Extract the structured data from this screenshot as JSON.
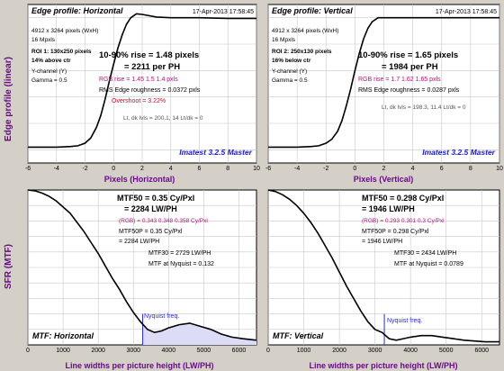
{
  "colors": {
    "background": "#d4d0c8",
    "plot_bg": "#ffffff",
    "grid": "#c8c8c8",
    "curve": "#000000",
    "label_purple": "#6a0a8a",
    "rgb_magenta": "#b0127a",
    "overshoot_red": "#c0102a",
    "imatest_blue": "#1a1acc",
    "nyquist_blue": "#2b2bd0",
    "nyquist_fill": "#dcdcf6"
  },
  "edge_ylabel": "Edge profile (linear)",
  "sfr_ylabel": "SFR (MTF)",
  "chart_data": [
    {
      "type": "line",
      "title": "Edge profile: Horizontal",
      "timestamp": "17-Apr-2013 17:58:45",
      "xlabel": "Pixels (Horizontal)",
      "xlim": [
        -6,
        10
      ],
      "x_ticks": [
        "-6",
        "-4",
        "-2",
        "0",
        "2",
        "4",
        "6",
        "8",
        "10"
      ],
      "grid": true,
      "info_lines": [
        "4912 x 3264 pixels (WxH)",
        "16 Mpxls",
        "ROI 1:  130x250 pixels",
        "14% above ctr",
        "Y-channel  (Y)",
        "Gamma = 0.5"
      ],
      "rise_lines": [
        "10-90% rise = 1.48 pixels",
        "= 2211 per PH"
      ],
      "rgb_rise": "RGB rise = 1.45   1.5   1.4 pxls",
      "rms_roughness": "RMS Edge roughness = 0.0372 pxls",
      "overshoot": "Overshoot = 3.22%",
      "levels": "Lt, dk lvls = 200.1, 14    Lt/dk = 0",
      "watermark": "Imatest 3.2.5 Master",
      "series": [
        {
          "x": [
            -6,
            -4,
            -3,
            -2.5,
            -2,
            -1.6,
            -1.2,
            -0.9,
            -0.6,
            -0.3,
            0,
            0.3,
            0.6,
            0.9,
            1.2,
            1.6,
            2,
            3,
            4,
            6,
            8,
            10
          ],
          "y": [
            0.02,
            0.02,
            0.025,
            0.03,
            0.05,
            0.09,
            0.17,
            0.26,
            0.38,
            0.52,
            0.65,
            0.77,
            0.87,
            0.95,
            1.0,
            1.03,
            1.025,
            1.005,
            1.0,
            1.0,
            0.995,
            0.995
          ]
        }
      ]
    },
    {
      "type": "line",
      "title": "Edge profile: Vertical",
      "timestamp": "17-Apr-2013 17:58:45",
      "xlabel": "Pixels (Vertical)",
      "xlim": [
        -6,
        10
      ],
      "x_ticks": [
        "-6",
        "-4",
        "-2",
        "0",
        "2",
        "4",
        "6",
        "8",
        "10"
      ],
      "grid": true,
      "info_lines": [
        "4912 x 3264 pixels (WxH)",
        "16 Mpxls",
        "ROI 2:  250x130 pixels",
        "16% below ctr",
        "Y-channel  (Y)",
        "Gamma = 0.5"
      ],
      "rise_lines": [
        "10-90% rise = 1.65 pixels",
        "= 1984 per PH"
      ],
      "rgb_rise": "RGB rise = 1.7   1.62   1.65 pxls",
      "rms_roughness": "RMS Edge roughness = 0.0287 pxls",
      "levels": "Lt, dk lvls = 198.3, 11.4    Lt/dk = 0",
      "watermark": "Imatest 3.2.5 Master",
      "series": [
        {
          "x": [
            -6,
            -4,
            -3,
            -2.5,
            -2,
            -1.6,
            -1.2,
            -0.9,
            -0.6,
            -0.3,
            0,
            0.3,
            0.6,
            0.9,
            1.2,
            1.6,
            2,
            3,
            4,
            6,
            8,
            10
          ],
          "y": [
            0.02,
            0.02,
            0.025,
            0.03,
            0.05,
            0.08,
            0.14,
            0.22,
            0.33,
            0.46,
            0.6,
            0.73,
            0.84,
            0.92,
            0.97,
            1.0,
            1.0,
            1.0,
            1.0,
            1.0,
            1.0,
            1.0
          ]
        }
      ]
    },
    {
      "type": "line",
      "title": "MTF: Horizontal",
      "xlabel": "Line widths per picture height (LW/PH)",
      "xlim": [
        0,
        6500
      ],
      "ylim": [
        0,
        1
      ],
      "x_ticks": [
        "0",
        "1000",
        "2000",
        "3000",
        "4000",
        "5000",
        "6000"
      ],
      "grid": true,
      "mtf50_lines": [
        "MTF50 = 0.35 Cy/Pxl",
        "= 2284 LW/PH"
      ],
      "mtf50_rgb": "(RGB) = 0.343  0.348  0.358 Cy/Pxl",
      "mtf50p_lines": [
        "MTF50P = 0.35 Cy/Pxl",
        "= 2284 LW/PH"
      ],
      "mtf30": "MTF30 = 2729 LW/PH",
      "mtf_nyquist": "MTF at Nyquist = 0.132",
      "nyquist_label": "Nyquist freq.",
      "nyquist_x": 3264,
      "series": [
        {
          "x": [
            0,
            200,
            400,
            600,
            800,
            1000,
            1200,
            1400,
            1600,
            1800,
            2000,
            2200,
            2400,
            2600,
            2800,
            3000,
            3200,
            3400,
            3600,
            3800,
            4000,
            4300,
            4600,
            4900,
            5200,
            5500,
            5800,
            6100,
            6500
          ],
          "y": [
            1.0,
            0.995,
            0.98,
            0.96,
            0.93,
            0.89,
            0.85,
            0.79,
            0.73,
            0.66,
            0.59,
            0.51,
            0.43,
            0.36,
            0.28,
            0.21,
            0.15,
            0.1,
            0.08,
            0.09,
            0.11,
            0.13,
            0.14,
            0.12,
            0.1,
            0.07,
            0.05,
            0.04,
            0.03
          ]
        }
      ]
    },
    {
      "type": "line",
      "title": "MTF: Vertical",
      "xlabel": "Line widths per picture height (LW/PH)",
      "xlim": [
        0,
        6500
      ],
      "ylim": [
        0,
        1
      ],
      "x_ticks": [
        "0",
        "1000",
        "2000",
        "3000",
        "4000",
        "5000",
        "6000"
      ],
      "grid": true,
      "mtf50_lines": [
        "MTF50 = 0.298 Cy/Pxl",
        "= 1946 LW/PH"
      ],
      "mtf50_rgb": "(RGB) = 0.293  0.301  0.3 Cy/Pxl",
      "mtf50p_lines": [
        "MTF50P = 0.298 Cy/Pxl",
        "= 1946 LW/PH"
      ],
      "mtf30": "MTF30 = 2434 LW/PH",
      "mtf_nyquist": "MTF at Nyquist = 0.0789",
      "nyquist_label": "Nyquist freq.",
      "nyquist_x": 3264,
      "series": [
        {
          "x": [
            0,
            200,
            400,
            600,
            800,
            1000,
            1200,
            1400,
            1600,
            1800,
            2000,
            2200,
            2400,
            2600,
            2800,
            3000,
            3200,
            3400,
            3600,
            3800,
            4000,
            4300,
            4600,
            4900,
            5200,
            5500,
            5800,
            6100,
            6500
          ],
          "y": [
            1.0,
            0.99,
            0.97,
            0.94,
            0.9,
            0.85,
            0.79,
            0.72,
            0.64,
            0.56,
            0.47,
            0.38,
            0.3,
            0.22,
            0.15,
            0.1,
            0.08,
            0.04,
            0.03,
            0.04,
            0.05,
            0.06,
            0.06,
            0.05,
            0.04,
            0.03,
            0.025,
            0.02,
            0.02
          ]
        }
      ]
    }
  ]
}
